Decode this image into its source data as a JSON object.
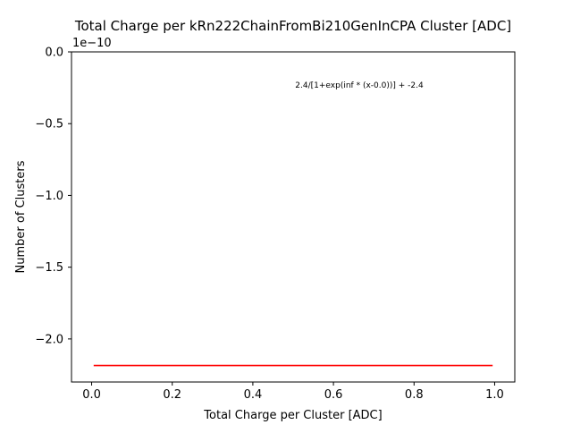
{
  "chart_data": {
    "type": "line",
    "title": "Total Charge per kRn222ChainFromBi210GenInCPA Cluster [ADC]",
    "xlabel": "Total Charge per Cluster [ADC]",
    "ylabel": "Number of Clusters",
    "y_offset_label": "1e−10",
    "annotation": "2.4/[1+exp(inf * (x-0.0))] + -2.4",
    "xlim": [
      -0.05,
      1.05
    ],
    "ylim": [
      -2.3,
      0.0
    ],
    "x_ticks": [
      0.0,
      0.2,
      0.4,
      0.6,
      0.8,
      1.0
    ],
    "x_tick_labels": [
      "0.0",
      "0.2",
      "0.4",
      "0.6",
      "0.8",
      "1.0"
    ],
    "y_ticks": [
      0.0,
      -0.5,
      -1.0,
      -1.5,
      -2.0
    ],
    "y_tick_labels": [
      "0.0",
      "−0.5",
      "−1.0",
      "−1.5",
      "−2.0"
    ],
    "grid": false,
    "series": [
      {
        "color": "#ff0000",
        "x": [
          0.005,
          0.995
        ],
        "y": [
          -2.185,
          -2.185
        ]
      }
    ]
  }
}
